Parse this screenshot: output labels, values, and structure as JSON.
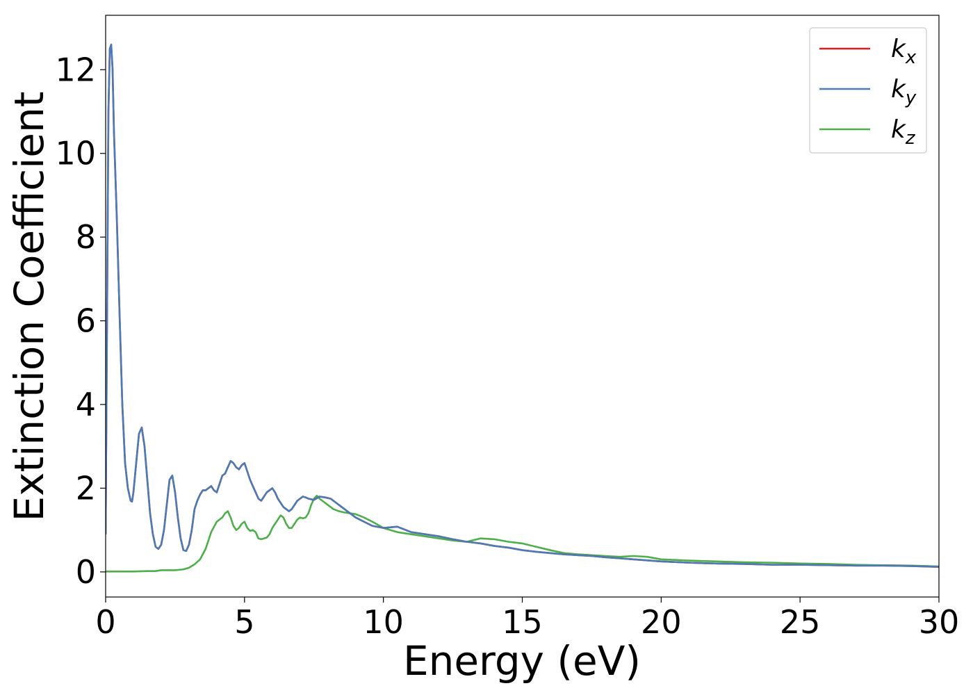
{
  "chart_data": {
    "type": "line",
    "xlabel": "Energy (eV)",
    "ylabel": "Extinction Coefficient",
    "xlim": [
      0,
      30
    ],
    "ylim": [
      -0.6,
      13.3
    ],
    "xticks": [
      0,
      5,
      10,
      15,
      20,
      25,
      30
    ],
    "xtick_labels": [
      "0",
      "5",
      "10",
      "15",
      "20",
      "25",
      "30"
    ],
    "yticks": [
      0,
      2,
      4,
      6,
      8,
      10,
      12
    ],
    "ytick_labels": [
      "0",
      "2",
      "4",
      "6",
      "8",
      "10",
      "12"
    ],
    "grid": false,
    "legend_position": "top-right",
    "series": [
      {
        "name": "kx",
        "legend_base": "k",
        "legend_sub": "x",
        "color": "#e41a1c",
        "x": [
          0,
          0.05,
          0.1,
          0.15,
          0.2,
          0.25,
          0.3,
          0.4,
          0.5,
          0.6,
          0.7,
          0.8,
          0.9,
          0.95,
          1.0,
          1.1,
          1.2,
          1.3,
          1.4,
          1.5,
          1.6,
          1.7,
          1.8,
          1.9,
          2.0,
          2.1,
          2.2,
          2.3,
          2.4,
          2.5,
          2.6,
          2.7,
          2.8,
          2.9,
          3.0,
          3.1,
          3.2,
          3.3,
          3.4,
          3.5,
          3.6,
          3.7,
          3.8,
          3.9,
          4.0,
          4.1,
          4.2,
          4.3,
          4.4,
          4.5,
          4.6,
          4.7,
          4.8,
          4.9,
          5.0,
          5.1,
          5.2,
          5.3,
          5.4,
          5.5,
          5.6,
          5.7,
          5.8,
          5.9,
          6.0,
          6.1,
          6.2,
          6.3,
          6.4,
          6.5,
          6.6,
          6.7,
          6.8,
          6.9,
          7.0,
          7.1,
          7.2,
          7.3,
          7.5,
          7.7,
          7.9,
          8.1,
          8.3,
          8.5,
          8.7,
          9.0,
          9.3,
          9.6,
          10.0,
          10.5,
          11.0,
          11.5,
          12.0,
          12.5,
          13.0,
          13.5,
          14.0,
          14.5,
          15.0,
          15.5,
          16.0,
          16.5,
          17.0,
          17.5,
          18.0,
          19.0,
          20.0,
          21.0,
          22.0,
          23.0,
          24.0,
          25.0,
          26.0,
          27.0,
          28.0,
          29.0,
          30.0
        ],
        "values": [
          0.9,
          6.0,
          11.0,
          12.5,
          12.6,
          12.0,
          10.5,
          8.5,
          6.2,
          4.0,
          2.6,
          2.0,
          1.7,
          1.68,
          1.9,
          2.6,
          3.3,
          3.45,
          3.0,
          2.2,
          1.4,
          0.9,
          0.6,
          0.55,
          0.65,
          1.0,
          1.6,
          2.2,
          2.3,
          1.9,
          1.3,
          0.8,
          0.52,
          0.5,
          0.65,
          1.0,
          1.5,
          1.7,
          1.85,
          1.95,
          1.95,
          2.0,
          2.05,
          1.95,
          1.9,
          2.1,
          2.3,
          2.35,
          2.5,
          2.65,
          2.6,
          2.5,
          2.45,
          2.55,
          2.6,
          2.4,
          2.2,
          2.05,
          1.9,
          1.75,
          1.7,
          1.8,
          1.9,
          1.95,
          2.0,
          1.9,
          1.75,
          1.65,
          1.55,
          1.5,
          1.45,
          1.5,
          1.6,
          1.7,
          1.75,
          1.8,
          1.78,
          1.75,
          1.72,
          1.8,
          1.78,
          1.75,
          1.65,
          1.55,
          1.45,
          1.3,
          1.2,
          1.1,
          1.05,
          1.08,
          0.95,
          0.9,
          0.85,
          0.78,
          0.72,
          0.68,
          0.62,
          0.58,
          0.52,
          0.48,
          0.45,
          0.42,
          0.4,
          0.38,
          0.35,
          0.3,
          0.25,
          0.22,
          0.2,
          0.19,
          0.17,
          0.17,
          0.16,
          0.15,
          0.15,
          0.14,
          0.12
        ]
      },
      {
        "name": "ky",
        "legend_base": "k",
        "legend_sub": "y",
        "color": "#4a7bb7",
        "x": [
          0,
          0.05,
          0.1,
          0.15,
          0.2,
          0.25,
          0.3,
          0.4,
          0.5,
          0.6,
          0.7,
          0.8,
          0.9,
          0.95,
          1.0,
          1.1,
          1.2,
          1.3,
          1.4,
          1.5,
          1.6,
          1.7,
          1.8,
          1.9,
          2.0,
          2.1,
          2.2,
          2.3,
          2.4,
          2.5,
          2.6,
          2.7,
          2.8,
          2.9,
          3.0,
          3.1,
          3.2,
          3.3,
          3.4,
          3.5,
          3.6,
          3.7,
          3.8,
          3.9,
          4.0,
          4.1,
          4.2,
          4.3,
          4.4,
          4.5,
          4.6,
          4.7,
          4.8,
          4.9,
          5.0,
          5.1,
          5.2,
          5.3,
          5.4,
          5.5,
          5.6,
          5.7,
          5.8,
          5.9,
          6.0,
          6.1,
          6.2,
          6.3,
          6.4,
          6.5,
          6.6,
          6.7,
          6.8,
          6.9,
          7.0,
          7.1,
          7.2,
          7.3,
          7.5,
          7.7,
          7.9,
          8.1,
          8.3,
          8.5,
          8.7,
          9.0,
          9.3,
          9.6,
          10.0,
          10.5,
          11.0,
          11.5,
          12.0,
          12.5,
          13.0,
          13.5,
          14.0,
          14.5,
          15.0,
          15.5,
          16.0,
          16.5,
          17.0,
          17.5,
          18.0,
          19.0,
          20.0,
          21.0,
          22.0,
          23.0,
          24.0,
          25.0,
          26.0,
          27.0,
          28.0,
          29.0,
          30.0
        ],
        "values": [
          0.9,
          6.0,
          11.0,
          12.5,
          12.6,
          12.0,
          10.5,
          8.5,
          6.2,
          4.0,
          2.6,
          2.0,
          1.7,
          1.68,
          1.9,
          2.6,
          3.3,
          3.45,
          3.0,
          2.2,
          1.4,
          0.9,
          0.6,
          0.55,
          0.65,
          1.0,
          1.6,
          2.2,
          2.3,
          1.9,
          1.3,
          0.8,
          0.52,
          0.5,
          0.65,
          1.0,
          1.5,
          1.7,
          1.85,
          1.95,
          1.95,
          2.0,
          2.05,
          1.95,
          1.9,
          2.1,
          2.3,
          2.35,
          2.5,
          2.65,
          2.6,
          2.5,
          2.45,
          2.55,
          2.6,
          2.4,
          2.2,
          2.05,
          1.9,
          1.75,
          1.7,
          1.8,
          1.9,
          1.95,
          2.0,
          1.9,
          1.75,
          1.65,
          1.55,
          1.5,
          1.45,
          1.5,
          1.6,
          1.7,
          1.75,
          1.8,
          1.78,
          1.75,
          1.72,
          1.8,
          1.78,
          1.75,
          1.65,
          1.55,
          1.45,
          1.3,
          1.2,
          1.1,
          1.05,
          1.08,
          0.95,
          0.9,
          0.85,
          0.78,
          0.72,
          0.68,
          0.62,
          0.58,
          0.52,
          0.48,
          0.45,
          0.42,
          0.4,
          0.38,
          0.35,
          0.3,
          0.25,
          0.22,
          0.2,
          0.19,
          0.17,
          0.17,
          0.16,
          0.15,
          0.15,
          0.14,
          0.12
        ]
      },
      {
        "name": "kz",
        "legend_base": "k",
        "legend_sub": "z",
        "color": "#4daf4a",
        "x": [
          0,
          1.0,
          1.5,
          1.8,
          2.0,
          2.5,
          2.8,
          3.0,
          3.2,
          3.4,
          3.6,
          3.8,
          4.0,
          4.2,
          4.3,
          4.4,
          4.5,
          4.6,
          4.7,
          4.8,
          4.9,
          5.0,
          5.1,
          5.2,
          5.3,
          5.4,
          5.5,
          5.6,
          5.7,
          5.8,
          5.9,
          6.0,
          6.1,
          6.2,
          6.3,
          6.4,
          6.5,
          6.6,
          6.7,
          6.8,
          6.9,
          7.0,
          7.1,
          7.2,
          7.3,
          7.4,
          7.5,
          7.6,
          7.7,
          7.8,
          7.9,
          8.0,
          8.2,
          8.4,
          8.6,
          8.8,
          9.0,
          9.3,
          9.6,
          10.0,
          10.5,
          11.0,
          11.5,
          12.0,
          12.5,
          13.0,
          13.5,
          14.0,
          14.5,
          15.0,
          15.5,
          16.0,
          16.5,
          17.0,
          17.5,
          18.0,
          18.5,
          19.0,
          19.5,
          20.0,
          21.0,
          22.0,
          23.0,
          24.0,
          25.0,
          26.0,
          27.0,
          28.0,
          29.0,
          30.0
        ],
        "values": [
          0.01,
          0.01,
          0.02,
          0.02,
          0.04,
          0.04,
          0.06,
          0.1,
          0.18,
          0.3,
          0.55,
          0.95,
          1.2,
          1.3,
          1.4,
          1.45,
          1.3,
          1.1,
          1.0,
          1.05,
          1.15,
          1.2,
          1.05,
          0.98,
          1.0,
          0.95,
          0.8,
          0.78,
          0.8,
          0.82,
          0.9,
          1.05,
          1.15,
          1.25,
          1.35,
          1.3,
          1.15,
          1.05,
          1.05,
          1.15,
          1.25,
          1.3,
          1.28,
          1.3,
          1.4,
          1.6,
          1.75,
          1.82,
          1.75,
          1.7,
          1.65,
          1.6,
          1.5,
          1.45,
          1.42,
          1.4,
          1.38,
          1.3,
          1.2,
          1.05,
          0.95,
          0.9,
          0.85,
          0.8,
          0.75,
          0.72,
          0.8,
          0.78,
          0.72,
          0.68,
          0.6,
          0.52,
          0.45,
          0.42,
          0.4,
          0.38,
          0.36,
          0.38,
          0.36,
          0.3,
          0.27,
          0.25,
          0.23,
          0.22,
          0.2,
          0.19,
          0.17,
          0.16,
          0.15,
          0.13
        ]
      }
    ]
  }
}
